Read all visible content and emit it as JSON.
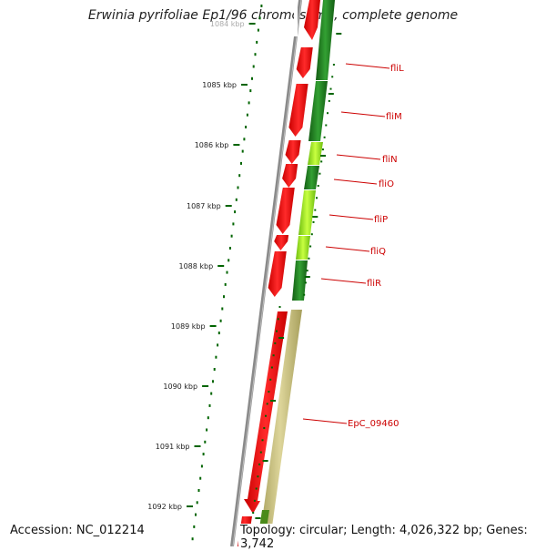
{
  "title": "Erwinia pyrifoliae Ep1/96 chromosome, complete genome",
  "accession": "Accession: NC_012214",
  "summary": "Topology: circular; Length: 4,026,322 bp; Genes: 3,742",
  "ruler": {
    "ticks": [
      "1084 kbp",
      "1085 kbp",
      "1086 kbp",
      "1087 kbp",
      "1088 kbp",
      "1089 kbp",
      "1090 kbp",
      "1091 kbp",
      "1092 kbp"
    ]
  },
  "genes": [
    {
      "name": "fliL"
    },
    {
      "name": "fliM"
    },
    {
      "name": "fliN"
    },
    {
      "name": "fliO"
    },
    {
      "name": "fliP"
    },
    {
      "name": "fliQ"
    },
    {
      "name": "fliR"
    },
    {
      "name": "EpC_09460"
    }
  ],
  "colors": {
    "cds": "#ff0000",
    "cds_dark": "#b30000",
    "backbone": "#888888",
    "ruler": "#006400",
    "label": "#cc0000",
    "green_dark": "#1e7a1e",
    "green_light": "#9de01e",
    "khaki": "#c8bf7a"
  }
}
